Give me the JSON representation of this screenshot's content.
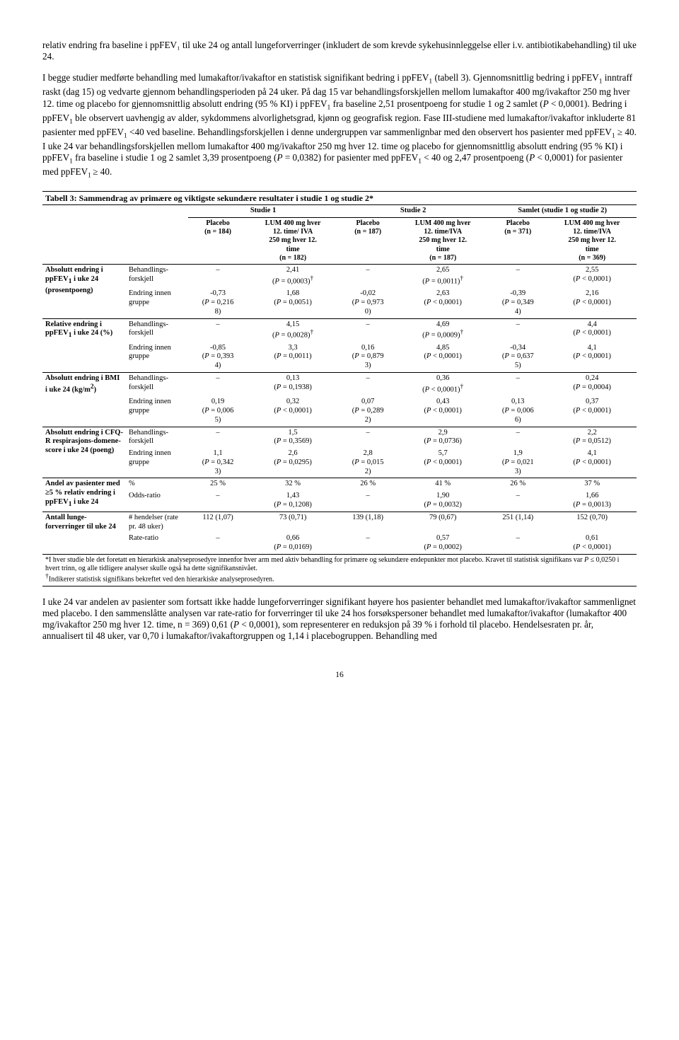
{
  "para1": "relativ endring fra baseline i ppFEV₁ til uke 24 og antall lungeforverringer (inkludert de som krevde sykehusinnleggelse eller i.v. antibiotikabehandling) til uke 24.",
  "para2_html": "I begge studier medførte behandling med lumakaftor/ivakaftor en statistisk signifikant bedring i ppFEV<span class='sub'>1</span> (tabell 3). Gjennomsnittlig bedring i ppFEV<span class='sub'>1</span> inntraff raskt (dag 15) og vedvarte gjennom behandlingsperioden på 24 uker. På dag 15 var behandlingsforskjellen mellom lumakaftor 400 mg/ivakaftor 250 mg hver 12. time og placebo for gjennomsnittlig absolutt endring (95 % KI) i ppFEV<span class='sub'>1</span> fra baseline 2,51 prosentpoeng for studie 1 og 2 samlet (<span class='italic'>P</span> &lt; 0,0001). Bedring i ppFEV<span class='sub'>1</span> ble observert uavhengig av alder, sykdommens alvorlighetsgrad, kjønn og geografisk region. Fase III-studiene med lumakaftor/ivakaftor inkluderte 81 pasienter med ppFEV<span class='sub'>1</span> &lt;40 ved baseline. Behandlingsforskjellen i denne undergruppen var sammenlignbar med den observert hos pasienter med ppFEV<span class='sub'>1</span> ≥ 40. I uke 24 var behandlingsforskjellen mellom lumakaftor 400 mg/ivakaftor 250 mg hver 12. time og placebo for gjennomsnittlig absolutt endring (95 % KI) i ppFEV<span class='sub'>1</span> fra baseline i studie 1 og 2 samlet 3,39 prosentpoeng (<span class='italic'>P</span> = 0,0382) for pasienter med ppFEV<span class='sub'>1</span> &lt; 40 og 2,47 prosentpoeng (<span class='italic'>P</span> &lt; 0,0001) for pasienter med ppFEV<span class='sub'>1 </span>≥ 40.",
  "table": {
    "title": "Tabell 3: Sammendrag av primære og viktigste sekundære resultater i studie 1 og studie 2*",
    "group_headers": [
      "Studie 1",
      "Studie 2",
      "Samlet (studie 1 og studie 2)"
    ],
    "col_headers": [
      "Placebo<br>(n = 184)",
      "LUM 400 mg hver<br>12. time/ IVA<br>250 mg hver 12.<br>time<br>(n = 182)",
      "Placebo<br>(n = 187)",
      "LUM 400 mg hver<br>12. time/IVA<br>250 mg hver 12.<br>time<br>(n = 187)",
      "Placebo<br>(n = 371)",
      "LUM 400 mg hver<br>12. time/IVA<br>250 mg hver 12.<br>time<br>(n = 369)"
    ],
    "sections": [
      {
        "label_html": "Absolutt endring i ppFEV<span class='sub'>1</span> i uke 24 (prosentpoeng)",
        "rows": [
          {
            "sub": "Behandlings-forskjell",
            "cells": [
              "–",
              "2,41<br>(<span class='italic'>P</span> = 0,0003)<span class='sup'>†</span>",
              "–",
              "2,65<br>(<span class='italic'>P</span> = 0,0011)<span class='sup'>†</span>",
              "–",
              "2,55<br>(<span class='italic'>P</span> &lt; 0,0001)"
            ]
          },
          {
            "sub": "Endring innen gruppe",
            "cells": [
              "-0,73<br>(<span class='italic'>P</span> = 0,216<br>8)",
              "1,68<br>(<span class='italic'>P</span> = 0,0051)",
              "-0,02<br>(<span class='italic'>P</span> = 0,973<br>0)",
              "2,63<br>(<span class='italic'>P</span> &lt; 0,0001)",
              "-0,39<br>(<span class='italic'>P</span> = 0,349<br>4)",
              "2,16<br>(<span class='italic'>P</span> &lt; 0,0001)"
            ]
          }
        ]
      },
      {
        "label_html": "Relative endring i ppFEV<span class='sub'>1</span> i uke 24 (%)",
        "rows": [
          {
            "sub": "Behandlings-forskjell",
            "cells": [
              "–",
              "4,15<br>(<span class='italic'>P</span> = 0,0028)<span class='sup'>†</span>",
              "–",
              "4,69<br>(<span class='italic'>P</span> = 0,0009)<span class='sup'>†</span>",
              "–",
              "4,4<br>(<span class='italic'>P</span> &lt; 0,0001)"
            ]
          },
          {
            "sub": "Endring innen gruppe",
            "cells": [
              "-0,85<br>(<span class='italic'>P</span> = 0,393<br>4)",
              "3,3<br>(<span class='italic'>P</span> = 0,0011)",
              "0,16<br>(<span class='italic'>P</span> = 0,879<br>3)",
              "4,85<br>(<span class='italic'>P</span> &lt; 0,0001)",
              "-0,34<br>(<span class='italic'>P</span> = 0,637<br>5)",
              "4,1<br>(<span class='italic'>P</span> &lt; 0,0001)"
            ]
          }
        ]
      },
      {
        "label_html": "Absolutt endring i BMI i uke 24 (kg/m<span class='sup'>2</span>)",
        "rows": [
          {
            "sub": "Behandlings-forskjell",
            "cells": [
              "–",
              "0,13<br>(<span class='italic'>P</span> = 0,1938)",
              "–",
              "0,36<br>(<span class='italic'>P</span> &lt; 0,0001)<span class='sup'>†</span>",
              "–",
              "0,24<br>(<span class='italic'>P</span> = 0,0004)"
            ]
          },
          {
            "sub": "Endring innen gruppe",
            "cells": [
              "0,19<br>(<span class='italic'>P</span> = 0,006<br>5)",
              "0,32<br>(<span class='italic'>P</span> &lt; 0,0001)",
              "0,07<br>(<span class='italic'>P</span> = 0,289<br>2)",
              "0,43<br>(<span class='italic'>P</span> &lt; 0,0001)",
              "0,13<br>(<span class='italic'>P</span> = 0,006<br>6)",
              "0,37<br>(<span class='italic'>P</span> &lt; 0,0001)"
            ]
          }
        ]
      },
      {
        "label_html": "Absolutt endring i CFQ-R respirasjons-domene-score i uke 24 (poeng)",
        "rows": [
          {
            "sub": "Behandlings-forskjell",
            "cells": [
              "–",
              "1,5<br>(<span class='italic'>P</span> = 0,3569)",
              "–",
              "2,9<br>(<span class='italic'>P</span> = 0,0736)",
              "–",
              "2,2<br>(<span class='italic'>P</span> = 0,0512)"
            ]
          },
          {
            "sub": "Endring innen gruppe",
            "cells": [
              "1,1<br>(<span class='italic'>P</span> = 0,342<br>3)",
              "2,6<br>(<span class='italic'>P</span> = 0,0295)",
              "2,8<br>(<span class='italic'>P</span> = 0,015<br>2)",
              "5,7<br>(<span class='italic'>P</span> &lt; 0,0001)",
              "1,9<br>(<span class='italic'>P</span> = 0,021<br>3)",
              "4,1<br>(<span class='italic'>P</span> &lt; 0,0001)"
            ]
          }
        ]
      },
      {
        "label_html": "Andel av pasienter med ≥5 % relativ endring i ppFEV<span class='sub'>1</span> i uke 24",
        "rows": [
          {
            "sub": "%",
            "cells": [
              "25 %",
              "32 %",
              "26 %",
              "41 %",
              "26 %",
              "37 %"
            ]
          },
          {
            "sub": "Odds-ratio",
            "cells": [
              "–",
              "1,43<br>(<span class='italic'>P</span> = 0,1208)",
              "–",
              "1,90<br>(<span class='italic'>P</span> = 0,0032)",
              "–",
              "1,66<br>(<span class='italic'>P</span> = 0,0013)"
            ]
          }
        ]
      },
      {
        "label_html": "Antall lunge-forverringer til uke 24",
        "rows": [
          {
            "sub": "# hendelser (rate pr. 48 uker)",
            "cells": [
              "112 (1,07)",
              "73 (0,71)",
              "139 (1,18)",
              "79 (0,67)",
              "251 (1,14)",
              "152 (0,70)"
            ]
          },
          {
            "sub": "Rate-ratio",
            "cells": [
              "–",
              "0,66<br>(<span class='italic'>P</span> = 0,0169)",
              "–",
              "0,57<br>(<span class='italic'>P</span> = 0,0002)",
              "–",
              "0,61<br>(<span class='italic'>P</span> &lt; 0,0001)"
            ]
          }
        ]
      }
    ],
    "footnote_html": "*I hver studie ble det foretatt en hierarkisk analyseprosedyre innenfor hver arm med aktiv behandling for primære og sekundære endepunkter mot placebo. Kravet til statistisk signifikans var <span class='italic'>P</span> ≤ 0,0250 i hvert trinn, og alle tidligere analyser skulle også ha dette signifikansnivået.<br><span class='sup'>†</span>Indikerer statistisk signifikans bekreftet ved den hierarkiske analyseprosedyren."
  },
  "para3_html": "I uke 24 var andelen av pasienter som fortsatt ikke hadde lungeforverringer signifikant høyere hos pasienter behandlet med lumakaftor/ivakaftor sammenlignet med placebo. I den sammenslåtte analysen var rate-ratio for forverringer til uke 24 hos forsøkspersoner behandlet med lumakaftor/ivakaftor (lumakaftor 400 mg/ivakaftor 250 mg hver 12. time, n = 369) 0,61 (<span class='italic'>P</span> &lt; 0,0001), som representerer en reduksjon på 39 % i forhold til placebo. Hendelsesraten pr. år, annualisert til 48 uker, var 0,70 i lumakaftor/ivakaftorgruppen og 1,14 i placebogruppen. Behandling med",
  "pagenum": "16"
}
